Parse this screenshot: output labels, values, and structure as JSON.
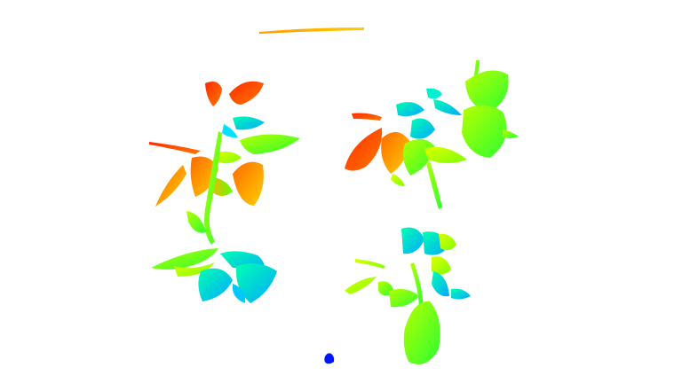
{
  "scene": {
    "background": "#ffffff",
    "subjects": [
      "plant-cloud-top-left",
      "plant-cloud-top-right",
      "plant-cloud-bottom-left",
      "plant-cloud-bottom-right",
      "reference-bar",
      "floor-marker"
    ]
  },
  "colormap": {
    "near": "#ff2a00",
    "mid_warm": "#ffb300",
    "mid": "#7cff00",
    "mid_cool": "#00ffc0",
    "far": "#00a0ff",
    "marker": "#0015ff"
  }
}
